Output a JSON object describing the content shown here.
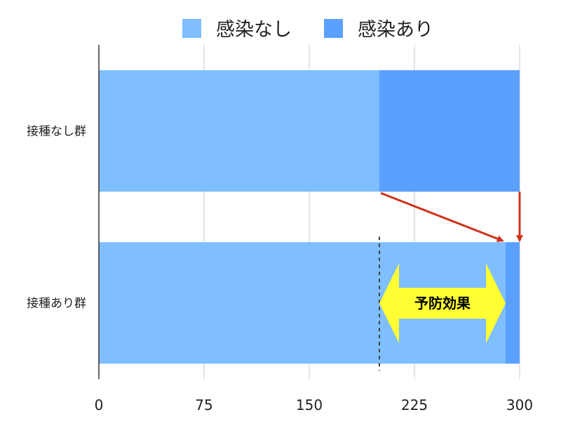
{
  "chart_data": {
    "type": "bar",
    "orientation": "horizontal",
    "stacked": true,
    "categories": [
      "接種なし群",
      "接種あり群"
    ],
    "series": [
      {
        "name": "感染なし",
        "values": [
          200,
          290
        ],
        "color": "#7fbeff"
      },
      {
        "name": "感染あり",
        "values": [
          100,
          10
        ],
        "color": "#5aa0ff"
      }
    ],
    "xlim": [
      0,
      300
    ],
    "x_ticks": [
      "0",
      "75",
      "150",
      "225",
      "300"
    ],
    "grid": true,
    "legend_position": "top",
    "reference_line_x": 200,
    "annotation": {
      "text": "予防効果",
      "from_x": 200,
      "to_x": 290,
      "fill_color": "#ffff33"
    },
    "arrow_color": "#d0311c"
  }
}
